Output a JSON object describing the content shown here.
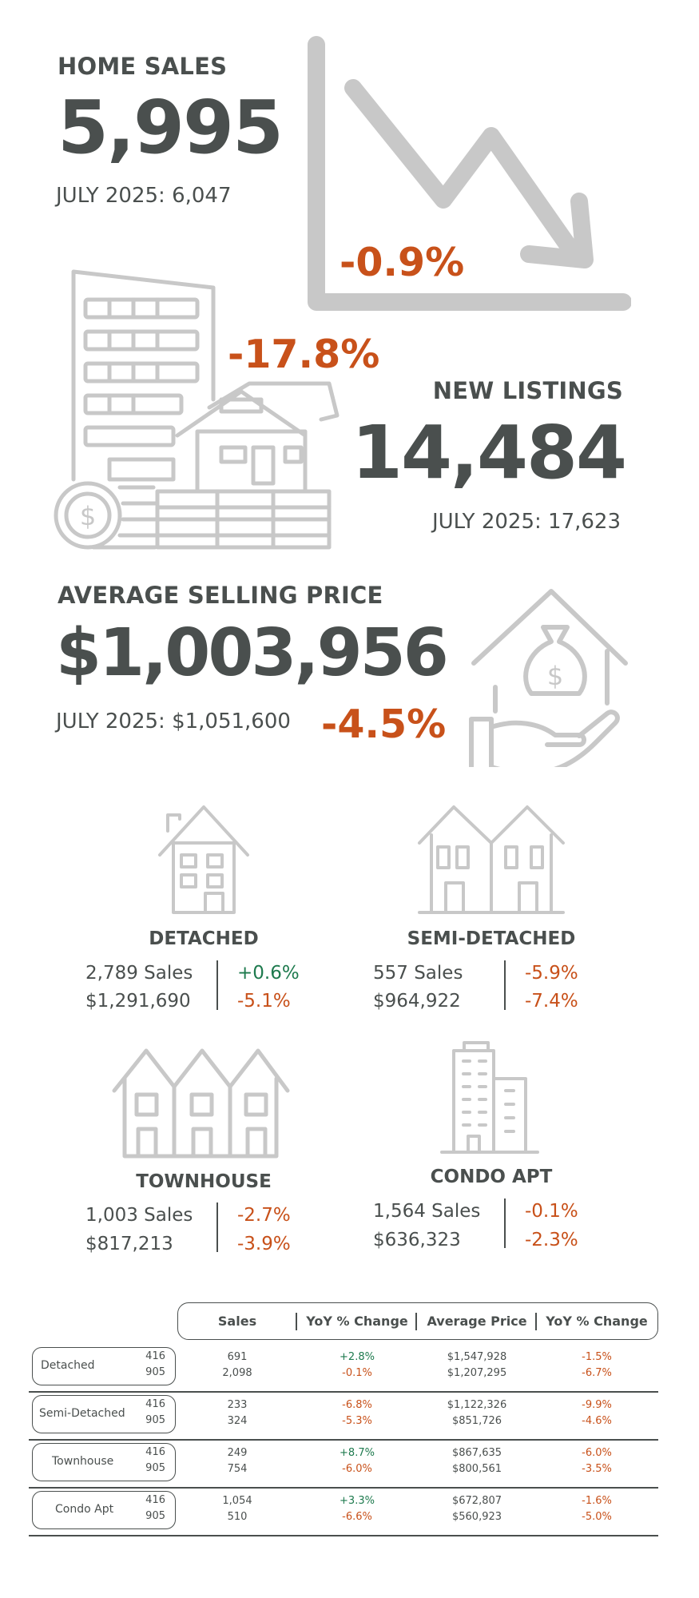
{
  "home_sales": {
    "label": "HOME SALES",
    "value": "5,995",
    "prior": "JULY 2025: 6,047",
    "change": "-0.9%"
  },
  "new_listings": {
    "label": "NEW LISTINGS",
    "value": "14,484",
    "prior": "JULY 2025: 17,623",
    "change": "-17.8%"
  },
  "avg_price": {
    "label": "AVERAGE SELLING PRICE",
    "value": "$1,003,956",
    "prior": "JULY 2025: $1,051,600",
    "change": "-4.5%"
  },
  "types": [
    {
      "title": "DETACHED",
      "sales": "2,789 Sales",
      "sales_change": "+0.6%",
      "price": "$1,291,690",
      "price_change": "-5.1%"
    },
    {
      "title": "SEMI-DETACHED",
      "sales": "557 Sales",
      "sales_change": "-5.9%",
      "price": "$964,922",
      "price_change": "-7.4%"
    },
    {
      "title": "TOWNHOUSE",
      "sales": "1,003 Sales",
      "sales_change": "-2.7%",
      "price": "$817,213",
      "price_change": "-3.9%"
    },
    {
      "title": "CONDO APT",
      "sales": "1,564 Sales",
      "sales_change": "-0.1%",
      "price": "$636,323",
      "price_change": "-2.3%"
    }
  ],
  "table": {
    "headers": [
      "Sales",
      "YoY % Change",
      "Average Price",
      "YoY % Change"
    ],
    "rows": [
      {
        "name": "Detached",
        "codes": [
          "416",
          "905"
        ],
        "sales": [
          "691",
          "2,098"
        ],
        "sales_yoy": [
          "+2.8%",
          "-0.1%"
        ],
        "price": [
          "$1,547,928",
          "$1,207,295"
        ],
        "price_yoy": [
          "-1.5%",
          "-6.7%"
        ]
      },
      {
        "name": "Semi-Detached",
        "codes": [
          "416",
          "905"
        ],
        "sales": [
          "233",
          "324"
        ],
        "sales_yoy": [
          "-6.8%",
          "-5.3%"
        ],
        "price": [
          "$1,122,326",
          "$851,726"
        ],
        "price_yoy": [
          "-9.9%",
          "-4.6%"
        ]
      },
      {
        "name": "Townhouse",
        "codes": [
          "416",
          "905"
        ],
        "sales": [
          "249",
          "754"
        ],
        "sales_yoy": [
          "+8.7%",
          "-6.0%"
        ],
        "price": [
          "$867,635",
          "$800,561"
        ],
        "price_yoy": [
          "-6.0%",
          "-3.5%"
        ]
      },
      {
        "name": "Condo Apt",
        "codes": [
          "416",
          "905"
        ],
        "sales": [
          "1,054",
          "510"
        ],
        "sales_yoy": [
          "+3.3%",
          "-6.6%"
        ],
        "price": [
          "$672,807",
          "$560,923"
        ],
        "price_yoy": [
          "-1.6%",
          "-5.0%"
        ]
      }
    ]
  },
  "colors": {
    "negative": "#c8511a",
    "positive": "#1e7a4e",
    "text": "#4a4f4e",
    "icon": "#c8c8c8"
  },
  "icons": [
    "trend-down-chart-icon",
    "buildings-house-coins-icon",
    "hand-house-money-bag-icon",
    "detached-house-icon",
    "semi-detached-house-icon",
    "townhouse-icon",
    "condo-building-icon"
  ]
}
